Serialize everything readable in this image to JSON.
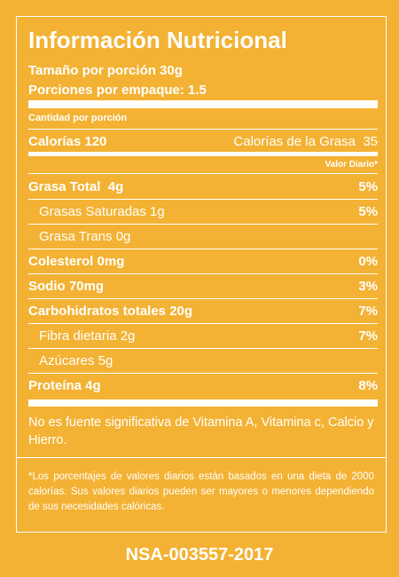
{
  "header": {
    "title": "Información Nutricional",
    "serving_size": "Tamaño por porción 30g",
    "servings": "Porciones por empaque: 1.5"
  },
  "amount_per_serving": "Cantidad por porción",
  "calories": {
    "label": "Calorías 120",
    "fat_label": "Calorías de la Grasa",
    "fat_value": "35"
  },
  "daily_value_header": "Valor Diario*",
  "nutrients": [
    {
      "name": "Grasa Total  4g",
      "dv": "5%",
      "sub_items": [
        {
          "name": "Grasas Saturadas 1g",
          "dv": "5%"
        },
        {
          "name": "Grasa Trans 0g"
        }
      ]
    },
    {
      "name": "Colesterol 0mg",
      "dv": "0%"
    },
    {
      "name": "Sodio 70mg",
      "dv": "3%"
    },
    {
      "name": "Carbohidratos totales 20g",
      "dv": "7%",
      "sub_items": [
        {
          "name": "Fibra dietaria 2g",
          "dv": "7%"
        },
        {
          "name": "Azúcares 5g"
        }
      ]
    },
    {
      "name": "Proteína 4g",
      "dv": "8%"
    }
  ],
  "note": "No es fuente significativa de Vitamina A, Vitamina c, Calcio y Hierro.",
  "footnote": "*Los porcentajes de valores diarios están basados en una dieta de 2000 calorías. Sus valores diarios pueden ser mayores o menores dependiendo de sus necesidades calóricas.",
  "registration": "NSA-003557-2017"
}
